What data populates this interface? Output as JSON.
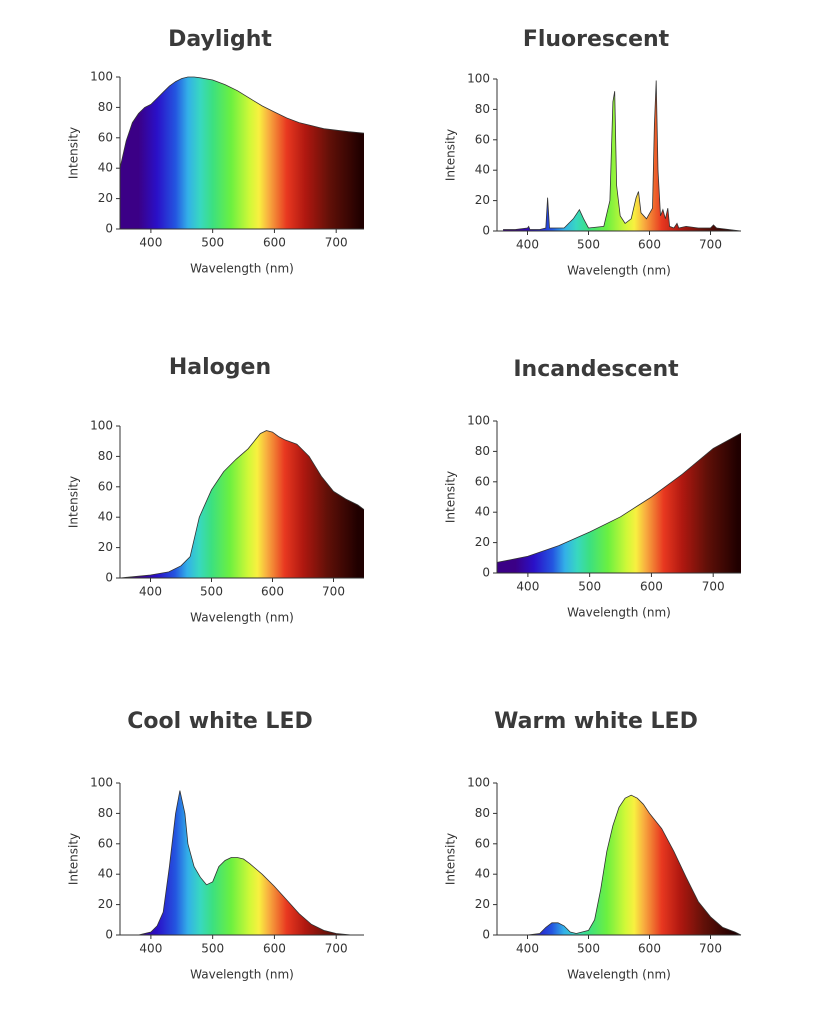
{
  "chart_data": [
    {
      "type": "area",
      "title": "Daylight",
      "xlabel": "Wavelength (nm)",
      "ylabel": "Intensity",
      "x": [
        350,
        360,
        370,
        380,
        390,
        400,
        410,
        420,
        430,
        440,
        450,
        460,
        470,
        480,
        500,
        520,
        540,
        560,
        580,
        600,
        620,
        640,
        660,
        680,
        700,
        720,
        745
      ],
      "values": [
        40,
        58,
        70,
        76,
        80,
        82,
        86,
        90,
        94,
        97,
        99,
        100,
        100,
        99.5,
        98,
        95,
        91,
        86,
        81,
        77,
        73,
        70,
        68,
        66,
        65,
        64,
        63
      ],
      "xlim": [
        350,
        745
      ],
      "ylim": [
        0,
        100
      ],
      "xticks": [
        400,
        500,
        600,
        700
      ],
      "yticks": [
        0,
        20,
        40,
        60,
        80,
        100
      ]
    },
    {
      "type": "area",
      "title": "Fluorescent",
      "xlabel": "Wavelength (nm)",
      "ylabel": "Intensity",
      "x": [
        360,
        380,
        400,
        402,
        404,
        420,
        430,
        433,
        436,
        460,
        475,
        485,
        492,
        500,
        525,
        535,
        540,
        543,
        546,
        552,
        560,
        570,
        578,
        582,
        586,
        595,
        605,
        608,
        611,
        614,
        618,
        622,
        626,
        630,
        633,
        640,
        645,
        648,
        660,
        680,
        700,
        705,
        710,
        730,
        750
      ],
      "values": [
        1,
        1,
        2,
        3,
        1,
        1,
        2,
        22,
        2,
        2,
        8,
        14,
        8,
        2,
        3,
        20,
        85,
        92,
        30,
        10,
        5,
        8,
        22,
        26,
        12,
        8,
        15,
        70,
        99,
        40,
        10,
        14,
        8,
        15,
        3,
        2,
        5,
        2,
        3,
        2,
        2,
        4,
        2,
        1,
        0
      ],
      "xlim": [
        350,
        750
      ],
      "ylim": [
        0,
        100
      ],
      "xticks": [
        400,
        500,
        600,
        700
      ],
      "yticks": [
        0,
        20,
        40,
        60,
        80,
        100
      ]
    },
    {
      "type": "area",
      "title": "Halogen",
      "xlabel": "Wavelength (nm)",
      "ylabel": "Intensity",
      "x": [
        350,
        400,
        430,
        450,
        465,
        480,
        500,
        520,
        540,
        560,
        580,
        590,
        600,
        610,
        620,
        640,
        660,
        680,
        700,
        720,
        740,
        750
      ],
      "values": [
        0,
        2,
        4,
        8,
        14,
        40,
        58,
        70,
        78,
        85,
        95,
        97,
        96,
        93,
        91,
        88,
        80,
        67,
        57,
        52,
        48,
        45
      ],
      "xlim": [
        350,
        750
      ],
      "ylim": [
        0,
        100
      ],
      "xticks": [
        400,
        500,
        600,
        700
      ],
      "yticks": [
        0,
        20,
        40,
        60,
        80,
        100
      ]
    },
    {
      "type": "area",
      "title": "Incandescent",
      "xlabel": "Wavelength (nm)",
      "ylabel": "Intensity",
      "x": [
        350,
        400,
        450,
        500,
        550,
        600,
        650,
        700,
        745
      ],
      "values": [
        7,
        11,
        18,
        27,
        37,
        50,
        65,
        82,
        92
      ],
      "xlim": [
        350,
        745
      ],
      "ylim": [
        0,
        100
      ],
      "xticks": [
        400,
        500,
        600,
        700
      ],
      "yticks": [
        0,
        20,
        40,
        60,
        80,
        100
      ]
    },
    {
      "type": "area",
      "title": "Cool white LED",
      "xlabel": "Wavelength (nm)",
      "ylabel": "Intensity",
      "x": [
        380,
        400,
        410,
        420,
        430,
        440,
        447,
        455,
        460,
        470,
        480,
        490,
        500,
        510,
        520,
        530,
        540,
        550,
        560,
        580,
        600,
        620,
        640,
        660,
        680,
        700,
        725
      ],
      "values": [
        0,
        2,
        6,
        15,
        45,
        80,
        95,
        80,
        60,
        45,
        38,
        33,
        35,
        45,
        49,
        51,
        51,
        50,
        47,
        40,
        32,
        23,
        14,
        7,
        3,
        1,
        0
      ],
      "xlim": [
        350,
        745
      ],
      "ylim": [
        0,
        100
      ],
      "xticks": [
        400,
        500,
        600,
        700
      ],
      "yticks": [
        0,
        20,
        40,
        60,
        80,
        100
      ]
    },
    {
      "type": "area",
      "title": "Warm white LED",
      "xlabel": "Wavelength (nm)",
      "ylabel": "Intensity",
      "x": [
        350,
        400,
        420,
        430,
        440,
        450,
        460,
        470,
        480,
        500,
        510,
        520,
        530,
        540,
        550,
        560,
        570,
        580,
        590,
        600,
        620,
        640,
        660,
        680,
        700,
        720,
        740,
        750
      ],
      "values": [
        0,
        0,
        1,
        5,
        8,
        8,
        6,
        2,
        1,
        3,
        10,
        30,
        55,
        72,
        84,
        90,
        92,
        90,
        86,
        80,
        70,
        55,
        38,
        22,
        12,
        5,
        2,
        0
      ],
      "xlim": [
        350,
        750
      ],
      "ylim": [
        0,
        100
      ],
      "xticks": [
        400,
        500,
        600,
        700
      ],
      "yticks": [
        0,
        20,
        40,
        60,
        80,
        100
      ]
    }
  ]
}
